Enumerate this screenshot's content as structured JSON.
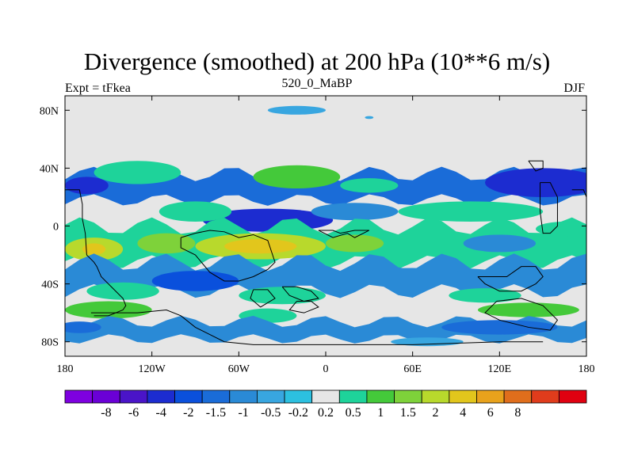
{
  "title": "Divergence (smoothed) at 200 hPa (10**6 m/s)",
  "subtitle": "520_0_MaBP",
  "left_label": "Expt = tFkea",
  "right_label": "DJF",
  "map": {
    "lon_range": [
      -180,
      180
    ],
    "lat_range": [
      -90,
      90
    ],
    "background_color": "#e6e6e6",
    "x_ticks": [
      {
        "lon": -180,
        "label": "180"
      },
      {
        "lon": -120,
        "label": "120W"
      },
      {
        "lon": -60,
        "label": "60W"
      },
      {
        "lon": 0,
        "label": "0"
      },
      {
        "lon": 60,
        "label": "60E"
      },
      {
        "lon": 120,
        "label": "120E"
      },
      {
        "lon": 180,
        "label": "180"
      }
    ],
    "y_ticks": [
      {
        "lat": 80,
        "label": "80N"
      },
      {
        "lat": 40,
        "label": "40N"
      },
      {
        "lat": 0,
        "label": "0"
      },
      {
        "lat": -40,
        "label": "40S"
      },
      {
        "lat": -80,
        "label": "80S"
      }
    ],
    "features": [
      {
        "shape": "band",
        "lon": [
          -180,
          180
        ],
        "lat": [
          36,
          55
        ],
        "value": 0.3,
        "waviness": 4
      },
      {
        "shape": "band",
        "lon": [
          -180,
          180
        ],
        "lat": [
          18,
          36
        ],
        "value": -1.2,
        "waviness": 5
      },
      {
        "shape": "ellipse",
        "lon": -20,
        "lat": 34,
        "rlon": 30,
        "rlat": 8,
        "value": 1.2
      },
      {
        "shape": "ellipse",
        "lon": -130,
        "lat": 37,
        "rlon": 30,
        "rlat": 8,
        "value": 0.6
      },
      {
        "shape": "ellipse",
        "lon": 150,
        "lat": 30,
        "rlon": 40,
        "rlat": 10,
        "value": -3
      },
      {
        "shape": "ellipse",
        "lon": -165,
        "lat": 28,
        "rlon": 15,
        "rlat": 6,
        "value": -2.5
      },
      {
        "shape": "ellipse",
        "lon": -40,
        "lat": 4,
        "rlon": 45,
        "rlat": 8,
        "value": -3
      },
      {
        "shape": "ellipse",
        "lon": 20,
        "lat": 10,
        "rlon": 30,
        "rlat": 6,
        "value": -1
      },
      {
        "shape": "ellipse",
        "lon": -90,
        "lat": 10,
        "rlon": 25,
        "rlat": 7,
        "value": 0.5
      },
      {
        "shape": "ellipse",
        "lon": 100,
        "lat": 10,
        "rlon": 50,
        "rlat": 7,
        "value": 0.5
      },
      {
        "shape": "ellipse",
        "lon": 30,
        "lat": 28,
        "rlon": 20,
        "rlat": 5,
        "value": 0.5
      },
      {
        "shape": "band",
        "lon": [
          -180,
          180
        ],
        "lat": [
          -25,
          0
        ],
        "value": 0.6,
        "waviness": 6
      },
      {
        "shape": "ellipse",
        "lon": -45,
        "lat": -14,
        "rlon": 45,
        "rlat": 9,
        "value": 3
      },
      {
        "shape": "ellipse",
        "lon": -45,
        "lat": -14,
        "rlon": 25,
        "rlat": 5,
        "value": 5
      },
      {
        "shape": "ellipse",
        "lon": -160,
        "lat": -16,
        "rlon": 20,
        "rlat": 8,
        "value": 3
      },
      {
        "shape": "ellipse",
        "lon": -160,
        "lat": -16,
        "rlon": 8,
        "rlat": 4,
        "value": 5
      },
      {
        "shape": "ellipse",
        "lon": -110,
        "lat": -12,
        "rlon": 20,
        "rlat": 7,
        "value": 1.5
      },
      {
        "shape": "ellipse",
        "lon": 20,
        "lat": -12,
        "rlon": 20,
        "rlat": 6,
        "value": 1.5
      },
      {
        "shape": "ellipse",
        "lon": 120,
        "lat": -12,
        "rlon": 25,
        "rlat": 6,
        "value": -1
      },
      {
        "shape": "ellipse",
        "lon": 165,
        "lat": -2,
        "rlon": 20,
        "rlat": 5,
        "value": 0.8
      },
      {
        "shape": "band",
        "lon": [
          -180,
          180
        ],
        "lat": [
          -45,
          -25
        ],
        "value": -1.0,
        "waviness": 6
      },
      {
        "shape": "ellipse",
        "lon": -90,
        "lat": -38,
        "rlon": 30,
        "rlat": 7,
        "value": -2
      },
      {
        "shape": "ellipse",
        "lon": 60,
        "lat": -35,
        "rlon": 40,
        "rlat": 6,
        "value": -0.7
      },
      {
        "shape": "ellipse",
        "lon": -140,
        "lat": -45,
        "rlon": 25,
        "rlat": 6,
        "value": 0.8
      },
      {
        "shape": "ellipse",
        "lon": -30,
        "lat": -48,
        "rlon": 30,
        "rlat": 6,
        "value": 0.8
      },
      {
        "shape": "ellipse",
        "lon": 110,
        "lat": -48,
        "rlon": 25,
        "rlat": 5,
        "value": 0.6
      },
      {
        "shape": "ellipse",
        "lon": 140,
        "lat": -58,
        "rlon": 35,
        "rlat": 5,
        "value": 1.2
      },
      {
        "shape": "ellipse",
        "lon": -150,
        "lat": -58,
        "rlon": 30,
        "rlat": 6,
        "value": 1.0
      },
      {
        "shape": "ellipse",
        "lon": -40,
        "lat": -62,
        "rlon": 20,
        "rlat": 5,
        "value": 0.8
      },
      {
        "shape": "band",
        "lon": [
          -180,
          180
        ],
        "lat": [
          -78,
          -66
        ],
        "value": -0.6,
        "waviness": 4
      },
      {
        "shape": "ellipse",
        "lon": 120,
        "lat": -70,
        "rlon": 40,
        "rlat": 5,
        "value": -1.2
      },
      {
        "shape": "ellipse",
        "lon": -170,
        "lat": -70,
        "rlon": 15,
        "rlat": 4,
        "value": -1.2
      },
      {
        "shape": "ellipse",
        "lon": 70,
        "lat": -80,
        "rlon": 25,
        "rlat": 3,
        "value": -0.3
      },
      {
        "shape": "ellipse",
        "lon": -20,
        "lat": 80,
        "rlon": 20,
        "rlat": 3,
        "value": -0.5
      },
      {
        "shape": "ellipse",
        "lon": 30,
        "lat": 75,
        "rlon": 3,
        "rlat": 1,
        "value": -0.5
      }
    ],
    "coastlines": [
      [
        [
          -180,
          25
        ],
        [
          -170,
          25
        ],
        [
          -168,
          15
        ],
        [
          -168,
          5
        ],
        [
          -166,
          -5
        ],
        [
          -165,
          -20
        ],
        [
          -160,
          -25
        ],
        [
          -158,
          -28
        ],
        [
          -155,
          -35
        ],
        [
          -150,
          -40
        ],
        [
          -145,
          -45
        ],
        [
          -140,
          -50
        ],
        [
          -138,
          -55
        ],
        [
          -140,
          -58
        ],
        [
          -150,
          -62
        ],
        [
          -160,
          -62
        ]
      ],
      [
        [
          -162,
          -60
        ],
        [
          -130,
          -60
        ],
        [
          -110,
          -58
        ],
        [
          -100,
          -62
        ],
        [
          -90,
          -70
        ],
        [
          -80,
          -75
        ],
        [
          -70,
          -80
        ],
        [
          -50,
          -82
        ],
        [
          0,
          -82
        ],
        [
          60,
          -82
        ],
        [
          120,
          -80
        ],
        [
          150,
          -80
        ]
      ],
      [
        [
          -100,
          -8
        ],
        [
          -90,
          -5
        ],
        [
          -80,
          -3
        ],
        [
          -70,
          -4
        ],
        [
          -60,
          -8
        ],
        [
          -50,
          -6
        ],
        [
          -40,
          -10
        ],
        [
          -35,
          -25
        ],
        [
          -40,
          -30
        ],
        [
          -50,
          -35
        ],
        [
          -60,
          -38
        ],
        [
          -70,
          -38
        ],
        [
          -80,
          -32
        ],
        [
          -90,
          -20
        ],
        [
          -100,
          -15
        ],
        [
          -100,
          -8
        ]
      ],
      [
        [
          -5,
          -3
        ],
        [
          5,
          -3
        ],
        [
          10,
          -5
        ],
        [
          20,
          -3
        ],
        [
          30,
          -3
        ],
        [
          20,
          -8
        ],
        [
          15,
          -5
        ],
        [
          5,
          -8
        ],
        [
          -5,
          -3
        ]
      ],
      [
        [
          -30,
          -42
        ],
        [
          -20,
          -42
        ],
        [
          -10,
          -45
        ],
        [
          -5,
          -50
        ],
        [
          -15,
          -52
        ],
        [
          -25,
          -48
        ],
        [
          -30,
          -42
        ]
      ],
      [
        [
          -20,
          -52
        ],
        [
          -10,
          -52
        ],
        [
          -5,
          -56
        ],
        [
          -15,
          -60
        ],
        [
          -25,
          -58
        ],
        [
          -20,
          -52
        ]
      ],
      [
        [
          -50,
          -44
        ],
        [
          -40,
          -44
        ],
        [
          -35,
          -50
        ],
        [
          -45,
          -56
        ],
        [
          -52,
          -50
        ],
        [
          -50,
          -44
        ]
      ],
      [
        [
          105,
          -35
        ],
        [
          115,
          -35
        ],
        [
          125,
          -35
        ],
        [
          135,
          -28
        ],
        [
          145,
          -28
        ],
        [
          150,
          -35
        ],
        [
          145,
          -40
        ],
        [
          135,
          -45
        ],
        [
          120,
          -45
        ],
        [
          110,
          -40
        ],
        [
          105,
          -35
        ]
      ],
      [
        [
          118,
          -52
        ],
        [
          135,
          -50
        ],
        [
          150,
          -55
        ],
        [
          160,
          -65
        ],
        [
          155,
          -72
        ],
        [
          140,
          -70
        ],
        [
          120,
          -65
        ],
        [
          110,
          -60
        ],
        [
          118,
          -52
        ]
      ],
      [
        [
          148,
          30
        ],
        [
          155,
          30
        ],
        [
          160,
          20
        ],
        [
          160,
          0
        ],
        [
          155,
          -5
        ],
        [
          150,
          -5
        ],
        [
          148,
          10
        ],
        [
          148,
          30
        ]
      ],
      [
        [
          170,
          25
        ],
        [
          178,
          25
        ],
        [
          180,
          20
        ]
      ],
      [
        [
          140,
          45
        ],
        [
          150,
          45
        ],
        [
          150,
          40
        ],
        [
          145,
          38
        ],
        [
          140,
          45
        ]
      ]
    ]
  },
  "colorbar": {
    "colors": [
      "#7e00e0",
      "#6a00d6",
      "#4a14c8",
      "#1c2cd0",
      "#0a50dc",
      "#1a6cd8",
      "#2a8ad6",
      "#38a6e0",
      "#2cc0e0",
      "#e6e6e6",
      "#1ed39a",
      "#44c93a",
      "#7ed23a",
      "#b8d92c",
      "#e2c61c",
      "#e8a21c",
      "#e06e1c",
      "#e03c1c",
      "#e00010"
    ],
    "labels": [
      "-8",
      "-6",
      "-4",
      "-2",
      "-1.5",
      "-1",
      "-0.5",
      "-0.2",
      "0.2",
      "0.5",
      "1",
      "1.5",
      "2",
      "4",
      "6",
      "8"
    ],
    "levels": [
      -10,
      -8,
      -6,
      -4,
      -2,
      -1.5,
      -1,
      -0.5,
      -0.2,
      0.2,
      0.5,
      1,
      1.5,
      2,
      4,
      6,
      8,
      10
    ]
  }
}
